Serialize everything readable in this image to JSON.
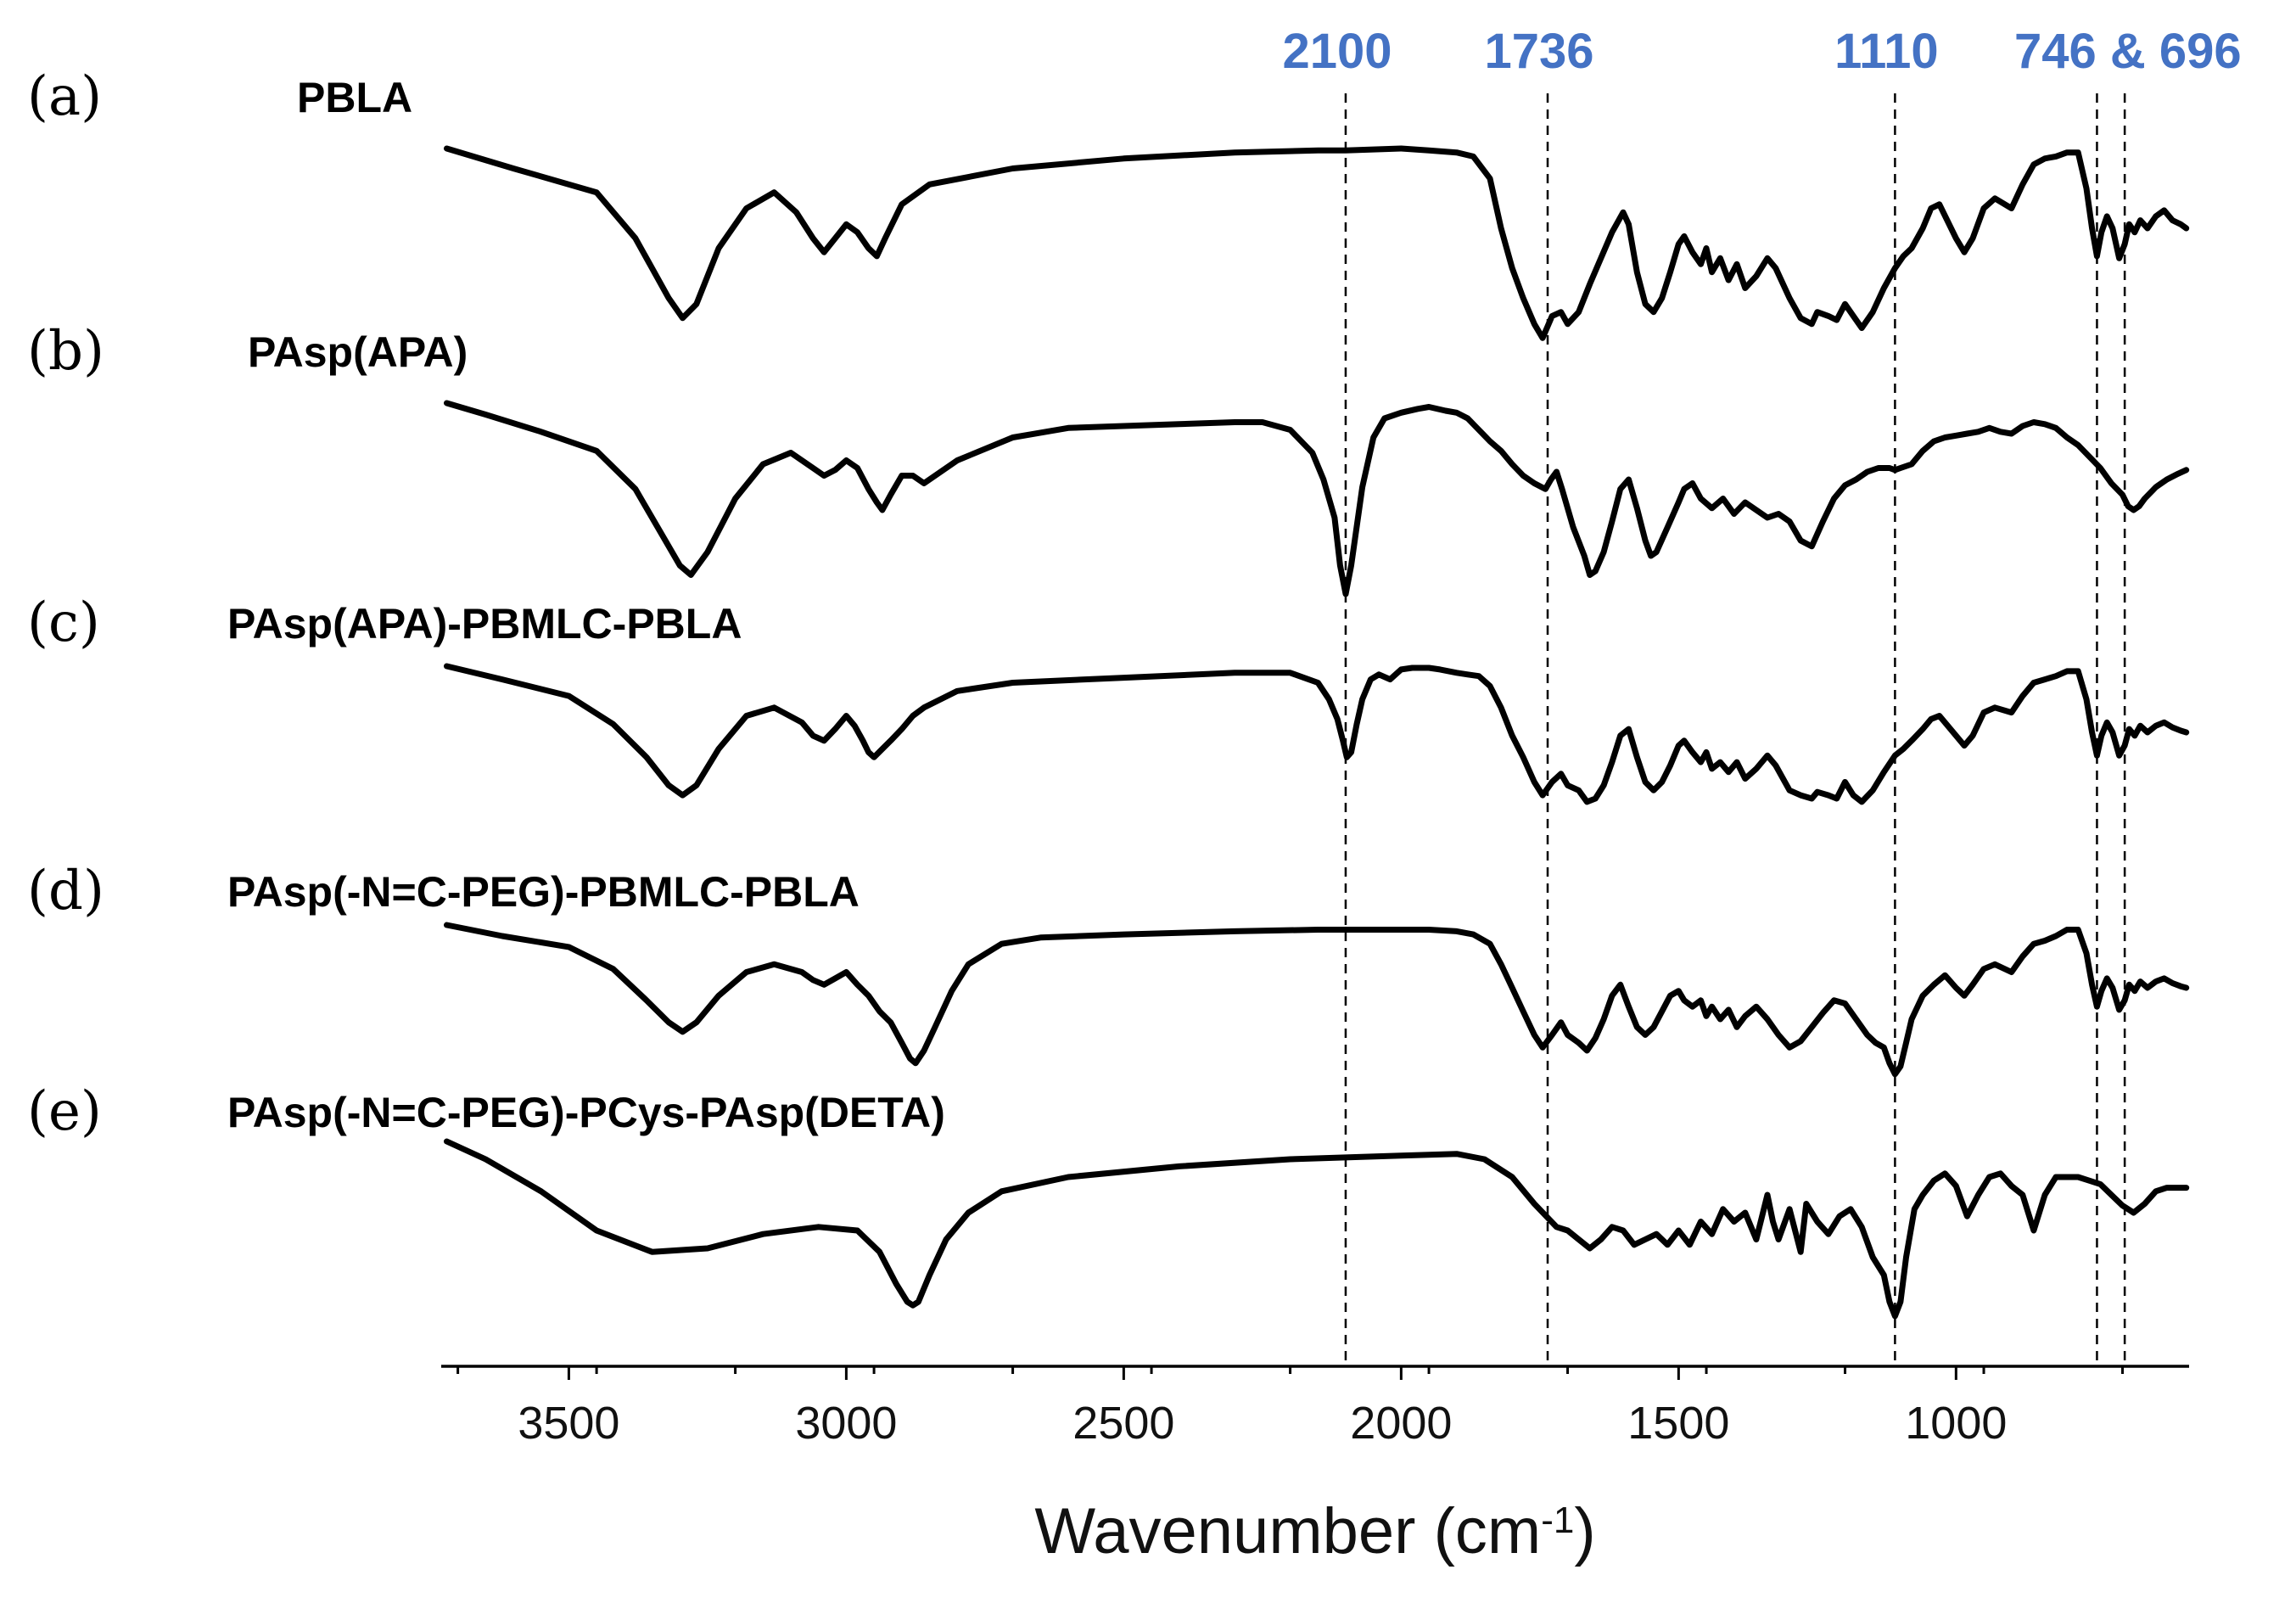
{
  "chart_data": {
    "type": "line",
    "title": "",
    "xlabel": "Wavenumber (cm-1)",
    "xlabel_main": "Wavenumber (cm",
    "xlabel_sup": "-1",
    "xlabel_close": ")",
    "ylabel": "",
    "xlim": [
      3730,
      580
    ],
    "x_reversed": true,
    "x_ticks": [
      3500,
      3000,
      2500,
      2000,
      1500,
      1000
    ],
    "x_tick_labels": [
      "3500",
      "3000",
      "2500",
      "2000",
      "1500",
      "1000"
    ],
    "y_axis_visible": false,
    "offset_stacked": true,
    "reference_lines": [
      {
        "x": 2100,
        "label": "2100"
      },
      {
        "x": 1736,
        "label": "1736"
      },
      {
        "x": 1110,
        "label": "1110"
      },
      {
        "x": 746,
        "label": ""
      },
      {
        "x": 696,
        "label": ""
      }
    ],
    "combined_peak_label": "746 & 696",
    "peak_label_color": "#4472c4",
    "line_color": "#000000",
    "series": [
      {
        "letter": "(a)",
        "name": "PBLA",
        "x": [
          3720,
          3600,
          3450,
          3380,
          3320,
          3295,
          3270,
          3230,
          3180,
          3130,
          3090,
          3060,
          3040,
          3020,
          3000,
          2980,
          2960,
          2945,
          2930,
          2900,
          2850,
          2700,
          2500,
          2300,
          2150,
          2100,
          2000,
          1950,
          1900,
          1870,
          1840,
          1820,
          1800,
          1780,
          1760,
          1745,
          1728,
          1712,
          1700,
          1680,
          1660,
          1640,
          1620,
          1600,
          1590,
          1575,
          1560,
          1545,
          1530,
          1515,
          1500,
          1490,
          1475,
          1460,
          1450,
          1440,
          1425,
          1410,
          1395,
          1380,
          1360,
          1340,
          1325,
          1300,
          1280,
          1260,
          1250,
          1230,
          1215,
          1200,
          1185,
          1170,
          1150,
          1130,
          1110,
          1095,
          1080,
          1060,
          1045,
          1030,
          1000,
          985,
          970,
          950,
          930,
          900,
          880,
          860,
          840,
          820,
          800,
          780,
          765,
          755,
          746,
          738,
          728,
          718,
          706,
          696,
          688,
          678,
          668,
          655,
          640,
          625,
          610,
          595,
          585
        ],
        "y": [
          1.0,
          0.9,
          0.78,
          0.55,
          0.25,
          0.15,
          0.22,
          0.5,
          0.7,
          0.78,
          0.68,
          0.55,
          0.48,
          0.55,
          0.62,
          0.58,
          0.5,
          0.46,
          0.55,
          0.72,
          0.82,
          0.9,
          0.95,
          0.98,
          0.99,
          0.99,
          1.0,
          0.99,
          0.98,
          0.96,
          0.85,
          0.6,
          0.4,
          0.25,
          0.12,
          0.05,
          0.16,
          0.18,
          0.12,
          0.18,
          0.32,
          0.45,
          0.58,
          0.68,
          0.62,
          0.38,
          0.22,
          0.18,
          0.25,
          0.38,
          0.52,
          0.56,
          0.48,
          0.42,
          0.5,
          0.38,
          0.45,
          0.34,
          0.42,
          0.3,
          0.36,
          0.45,
          0.4,
          0.25,
          0.15,
          0.12,
          0.18,
          0.16,
          0.14,
          0.22,
          0.16,
          0.1,
          0.18,
          0.3,
          0.4,
          0.46,
          0.5,
          0.6,
          0.7,
          0.72,
          0.55,
          0.48,
          0.55,
          0.7,
          0.75,
          0.7,
          0.82,
          0.92,
          0.95,
          0.96,
          0.98,
          0.98,
          0.8,
          0.6,
          0.46,
          0.58,
          0.66,
          0.6,
          0.45,
          0.52,
          0.62,
          0.58,
          0.64,
          0.6,
          0.66,
          0.69,
          0.64,
          0.62,
          0.6
        ]
      },
      {
        "letter": "(b)",
        "name": "PAsp(APA)",
        "x": [
          3720,
          3650,
          3550,
          3450,
          3380,
          3330,
          3300,
          3280,
          3250,
          3200,
          3150,
          3100,
          3060,
          3040,
          3020,
          3000,
          2980,
          2960,
          2945,
          2935,
          2920,
          2900,
          2880,
          2860,
          2800,
          2700,
          2600,
          2400,
          2300,
          2250,
          2200,
          2160,
          2140,
          2120,
          2110,
          2100,
          2090,
          2070,
          2050,
          2030,
          2000,
          1970,
          1950,
          1920,
          1900,
          1880,
          1860,
          1840,
          1820,
          1800,
          1780,
          1760,
          1740,
          1730,
          1720,
          1710,
          1690,
          1670,
          1660,
          1650,
          1635,
          1620,
          1605,
          1590,
          1575,
          1560,
          1550,
          1540,
          1520,
          1500,
          1490,
          1475,
          1460,
          1440,
          1420,
          1400,
          1380,
          1360,
          1340,
          1320,
          1300,
          1280,
          1260,
          1240,
          1220,
          1200,
          1180,
          1160,
          1140,
          1120,
          1110,
          1100,
          1080,
          1060,
          1040,
          1020,
          1000,
          980,
          960,
          940,
          920,
          900,
          880,
          860,
          840,
          820,
          800,
          780,
          760,
          740,
          720,
          700,
          690,
          680,
          670,
          660,
          640,
          620,
          600,
          585
        ],
        "y": [
          1.0,
          0.94,
          0.85,
          0.75,
          0.55,
          0.3,
          0.15,
          0.1,
          0.22,
          0.5,
          0.68,
          0.74,
          0.66,
          0.62,
          0.65,
          0.7,
          0.66,
          0.55,
          0.48,
          0.44,
          0.52,
          0.62,
          0.62,
          0.58,
          0.7,
          0.82,
          0.87,
          0.89,
          0.9,
          0.9,
          0.86,
          0.74,
          0.6,
          0.4,
          0.15,
          0.0,
          0.15,
          0.56,
          0.82,
          0.92,
          0.95,
          0.97,
          0.98,
          0.96,
          0.95,
          0.92,
          0.86,
          0.8,
          0.75,
          0.68,
          0.62,
          0.58,
          0.55,
          0.6,
          0.64,
          0.55,
          0.35,
          0.2,
          0.1,
          0.12,
          0.22,
          0.38,
          0.55,
          0.6,
          0.45,
          0.28,
          0.2,
          0.22,
          0.35,
          0.48,
          0.55,
          0.58,
          0.5,
          0.45,
          0.5,
          0.42,
          0.48,
          0.44,
          0.4,
          0.42,
          0.38,
          0.28,
          0.25,
          0.38,
          0.5,
          0.57,
          0.6,
          0.64,
          0.66,
          0.66,
          0.65,
          0.66,
          0.68,
          0.75,
          0.8,
          0.82,
          0.83,
          0.84,
          0.85,
          0.87,
          0.85,
          0.84,
          0.88,
          0.9,
          0.89,
          0.87,
          0.82,
          0.78,
          0.72,
          0.66,
          0.58,
          0.52,
          0.46,
          0.44,
          0.46,
          0.5,
          0.56,
          0.6,
          0.63,
          0.65
        ]
      },
      {
        "letter": "(c)",
        "name": "PAsp(APA)-PBMLC-PBLA",
        "x": [
          3720,
          3620,
          3500,
          3420,
          3360,
          3320,
          3295,
          3270,
          3230,
          3180,
          3130,
          3080,
          3060,
          3040,
          3020,
          3000,
          2985,
          2970,
          2960,
          2950,
          2935,
          2920,
          2900,
          2880,
          2860,
          2800,
          2700,
          2500,
          2300,
          2200,
          2150,
          2130,
          2115,
          2105,
          2098,
          2090,
          2080,
          2070,
          2055,
          2040,
          2020,
          2000,
          1980,
          1950,
          1930,
          1900,
          1880,
          1860,
          1840,
          1820,
          1800,
          1780,
          1760,
          1745,
          1728,
          1712,
          1700,
          1680,
          1665,
          1650,
          1635,
          1620,
          1605,
          1590,
          1575,
          1560,
          1545,
          1530,
          1515,
          1500,
          1490,
          1475,
          1460,
          1450,
          1440,
          1425,
          1410,
          1395,
          1380,
          1360,
          1340,
          1325,
          1300,
          1280,
          1260,
          1250,
          1230,
          1215,
          1200,
          1185,
          1170,
          1150,
          1130,
          1110,
          1095,
          1080,
          1060,
          1045,
          1030,
          1000,
          985,
          970,
          950,
          930,
          900,
          880,
          860,
          840,
          820,
          800,
          780,
          765,
          755,
          746,
          738,
          728,
          718,
          706,
          696,
          688,
          678,
          668,
          655,
          640,
          625,
          610,
          595,
          585
        ],
        "y": [
          1.0,
          0.92,
          0.82,
          0.65,
          0.45,
          0.28,
          0.22,
          0.28,
          0.5,
          0.7,
          0.75,
          0.66,
          0.58,
          0.55,
          0.62,
          0.7,
          0.64,
          0.55,
          0.48,
          0.45,
          0.5,
          0.55,
          0.62,
          0.7,
          0.75,
          0.85,
          0.9,
          0.93,
          0.96,
          0.96,
          0.9,
          0.8,
          0.68,
          0.55,
          0.45,
          0.48,
          0.65,
          0.8,
          0.92,
          0.95,
          0.92,
          0.98,
          0.99,
          0.99,
          0.98,
          0.96,
          0.95,
          0.94,
          0.88,
          0.75,
          0.58,
          0.45,
          0.3,
          0.22,
          0.3,
          0.35,
          0.28,
          0.25,
          0.18,
          0.2,
          0.28,
          0.42,
          0.58,
          0.62,
          0.45,
          0.3,
          0.25,
          0.3,
          0.4,
          0.52,
          0.55,
          0.48,
          0.42,
          0.48,
          0.38,
          0.42,
          0.36,
          0.42,
          0.32,
          0.38,
          0.46,
          0.4,
          0.25,
          0.22,
          0.2,
          0.24,
          0.22,
          0.2,
          0.3,
          0.22,
          0.18,
          0.25,
          0.36,
          0.46,
          0.5,
          0.55,
          0.62,
          0.68,
          0.7,
          0.58,
          0.52,
          0.58,
          0.72,
          0.75,
          0.72,
          0.82,
          0.9,
          0.92,
          0.94,
          0.97,
          0.97,
          0.8,
          0.6,
          0.46,
          0.58,
          0.66,
          0.6,
          0.46,
          0.52,
          0.62,
          0.58,
          0.64,
          0.6,
          0.64,
          0.66,
          0.63,
          0.61,
          0.6
        ]
      },
      {
        "letter": "(d)",
        "name": "PAsp(-N=C-PEG)-PBMLC-PBLA",
        "x": [
          3720,
          3620,
          3500,
          3420,
          3360,
          3320,
          3295,
          3270,
          3230,
          3180,
          3130,
          3080,
          3060,
          3040,
          3020,
          3000,
          2980,
          2960,
          2940,
          2920,
          2900,
          2885,
          2875,
          2860,
          2840,
          2810,
          2780,
          2720,
          2650,
          2500,
          2300,
          2150,
          2100,
          2000,
          1950,
          1900,
          1870,
          1840,
          1820,
          1800,
          1780,
          1760,
          1745,
          1728,
          1712,
          1700,
          1680,
          1665,
          1650,
          1635,
          1620,
          1605,
          1590,
          1575,
          1560,
          1545,
          1530,
          1515,
          1500,
          1490,
          1475,
          1460,
          1450,
          1440,
          1425,
          1410,
          1395,
          1380,
          1360,
          1340,
          1320,
          1300,
          1280,
          1260,
          1240,
          1220,
          1200,
          1180,
          1160,
          1145,
          1130,
          1120,
          1110,
          1100,
          1090,
          1080,
          1060,
          1040,
          1020,
          1000,
          985,
          970,
          950,
          930,
          900,
          880,
          860,
          840,
          820,
          800,
          780,
          765,
          755,
          746,
          738,
          728,
          718,
          706,
          696,
          688,
          678,
          668,
          655,
          640,
          625,
          610,
          595,
          585
        ],
        "y": [
          1.0,
          0.93,
          0.86,
          0.72,
          0.52,
          0.38,
          0.32,
          0.38,
          0.55,
          0.7,
          0.75,
          0.7,
          0.65,
          0.62,
          0.66,
          0.7,
          0.62,
          0.55,
          0.45,
          0.38,
          0.25,
          0.15,
          0.12,
          0.2,
          0.35,
          0.58,
          0.75,
          0.88,
          0.92,
          0.94,
          0.96,
          0.97,
          0.97,
          0.97,
          0.97,
          0.96,
          0.94,
          0.88,
          0.75,
          0.6,
          0.45,
          0.3,
          0.22,
          0.3,
          0.38,
          0.3,
          0.25,
          0.2,
          0.28,
          0.4,
          0.55,
          0.62,
          0.48,
          0.35,
          0.3,
          0.35,
          0.45,
          0.55,
          0.58,
          0.52,
          0.48,
          0.52,
          0.42,
          0.48,
          0.4,
          0.46,
          0.35,
          0.42,
          0.48,
          0.4,
          0.3,
          0.22,
          0.26,
          0.35,
          0.44,
          0.52,
          0.5,
          0.4,
          0.3,
          0.25,
          0.22,
          0.12,
          0.05,
          0.1,
          0.25,
          0.4,
          0.55,
          0.62,
          0.68,
          0.6,
          0.55,
          0.62,
          0.72,
          0.75,
          0.7,
          0.8,
          0.88,
          0.9,
          0.93,
          0.97,
          0.97,
          0.82,
          0.62,
          0.48,
          0.58,
          0.66,
          0.6,
          0.46,
          0.52,
          0.62,
          0.58,
          0.64,
          0.6,
          0.64,
          0.66,
          0.63,
          0.61,
          0.6
        ]
      },
      {
        "letter": "(e)",
        "name": "PAsp(-N=C-PEG)-PCys-PAsp(DETA)",
        "x": [
          3720,
          3650,
          3550,
          3450,
          3350,
          3250,
          3150,
          3050,
          2980,
          2940,
          2910,
          2890,
          2880,
          2870,
          2850,
          2820,
          2780,
          2720,
          2600,
          2400,
          2200,
          2000,
          1900,
          1850,
          1800,
          1760,
          1720,
          1700,
          1680,
          1660,
          1640,
          1620,
          1600,
          1580,
          1560,
          1540,
          1520,
          1500,
          1480,
          1460,
          1440,
          1420,
          1400,
          1380,
          1360,
          1340,
          1330,
          1320,
          1300,
          1280,
          1270,
          1250,
          1230,
          1210,
          1190,
          1170,
          1150,
          1130,
          1120,
          1110,
          1100,
          1090,
          1075,
          1060,
          1040,
          1020,
          1000,
          980,
          960,
          940,
          920,
          900,
          880,
          860,
          840,
          820,
          800,
          780,
          760,
          740,
          720,
          700,
          680,
          660,
          640,
          620,
          600,
          585
        ],
        "y": [
          1.0,
          0.9,
          0.72,
          0.5,
          0.38,
          0.4,
          0.48,
          0.52,
          0.5,
          0.38,
          0.2,
          0.1,
          0.08,
          0.1,
          0.25,
          0.45,
          0.6,
          0.72,
          0.8,
          0.86,
          0.9,
          0.92,
          0.93,
          0.9,
          0.8,
          0.65,
          0.52,
          0.5,
          0.45,
          0.4,
          0.45,
          0.52,
          0.5,
          0.42,
          0.45,
          0.48,
          0.42,
          0.5,
          0.42,
          0.55,
          0.48,
          0.62,
          0.55,
          0.6,
          0.45,
          0.7,
          0.55,
          0.45,
          0.62,
          0.38,
          0.65,
          0.55,
          0.48,
          0.58,
          0.62,
          0.52,
          0.35,
          0.25,
          0.1,
          0.02,
          0.1,
          0.35,
          0.62,
          0.7,
          0.78,
          0.82,
          0.75,
          0.58,
          0.7,
          0.8,
          0.82,
          0.75,
          0.7,
          0.5,
          0.7,
          0.8,
          0.8,
          0.8,
          0.78,
          0.76,
          0.7,
          0.64,
          0.6,
          0.65,
          0.72,
          0.74,
          0.74,
          0.74
        ]
      }
    ]
  }
}
